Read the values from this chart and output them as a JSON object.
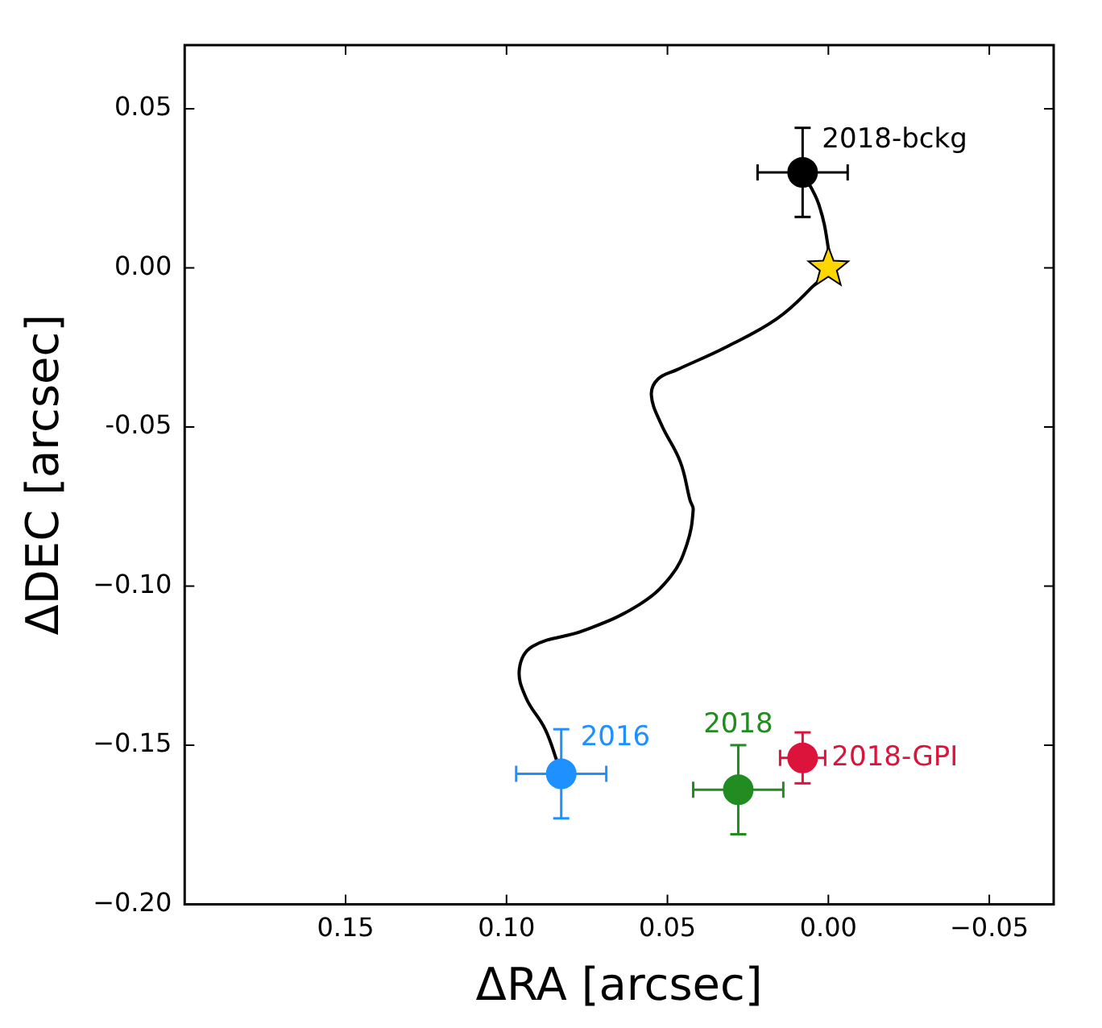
{
  "chart_data": {
    "type": "scatter",
    "xlabel": "ΔRA [arcsec]",
    "ylabel": "ΔDEC [arcsec]",
    "xlim": [
      0.2,
      -0.07
    ],
    "ylim": [
      -0.2,
      0.07
    ],
    "xticks": [
      0.15,
      {
        "value": 0.1,
        "label": "0.10"
      },
      0.05,
      {
        "value": 0,
        "label": "0.00"
      },
      {
        "value": -0.05,
        "label": "−0.05"
      }
    ],
    "yticks": [
      0.05,
      {
        "value": 0,
        "label": "0.00"
      },
      -0.05,
      {
        "value": -0.1,
        "label": "−0.10"
      },
      {
        "value": -0.15,
        "label": "−0.15"
      },
      {
        "value": -0.2,
        "label": "−0.20"
      }
    ],
    "series": [
      {
        "type": "line",
        "color": "#000000",
        "marker": "none",
        "x": [
          0.008,
          0.003,
          0.0,
          0.0,
          0.005,
          0.016,
          0.032,
          0.047,
          0.053,
          0.055,
          0.052,
          0.046,
          0.043,
          0.042,
          0.044,
          0.049,
          0.059,
          0.076,
          0.092,
          0.096,
          0.094,
          0.088,
          0.084
        ],
        "values": [
          0.03,
          0.02,
          0.006,
          0.0,
          -0.006,
          -0.016,
          -0.025,
          -0.032,
          -0.035,
          -0.04,
          -0.049,
          -0.061,
          -0.073,
          -0.076,
          -0.087,
          -0.097,
          -0.106,
          -0.114,
          -0.119,
          -0.126,
          -0.135,
          -0.145,
          -0.156
        ]
      },
      {
        "type": "scatter",
        "color": "#ffd700",
        "marker": "star",
        "x": [
          0.0
        ],
        "values": [
          0.0
        ]
      },
      {
        "type": "scatter",
        "name": "2018-bckg",
        "color": "#000000",
        "marker": "circle",
        "x": [
          0.008
        ],
        "values": [
          0.03
        ],
        "errors": [
          0.014
        ],
        "xerrors": [
          0.014
        ]
      },
      {
        "type": "scatter",
        "name": "2016",
        "color": "#1e90ff",
        "marker": "circle",
        "x": [
          0.083
        ],
        "values": [
          -0.159
        ],
        "errors": [
          0.014
        ],
        "xerrors": [
          0.014
        ]
      },
      {
        "type": "scatter",
        "name": "2018",
        "color": "#228b22",
        "marker": "circle",
        "x": [
          0.028
        ],
        "values": [
          -0.164
        ],
        "errors": [
          0.014
        ],
        "xerrors": [
          0.014
        ]
      },
      {
        "type": "scatter",
        "name": "2018-GPI",
        "color": "#dc143c",
        "marker": "circle",
        "x": [
          0.008
        ],
        "values": [
          -0.154
        ],
        "errors": [
          0.008
        ],
        "xerrors": [
          0.007
        ]
      }
    ]
  }
}
